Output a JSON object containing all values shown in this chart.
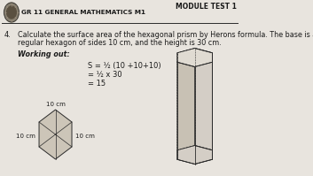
{
  "bg_color": "#e8e4de",
  "header_bg": "#e8e4de",
  "header_text": "GR 11 GENERAL MATHEMATICS M1",
  "module_text": "MODULE TEST 1",
  "question_num": "4.",
  "question_line1": "Calculate the surface area of the hexagonal prism by Herons formula. The base is a",
  "question_line2": "regular hexagon of sides 10 cm, and the height is 30 cm.",
  "working_label": "Working out:",
  "formula_lines": [
    "S = ½ (10 +10+10)",
    "= ½ x 30",
    "= 15"
  ],
  "line_color": "#2a2a2a",
  "text_color": "#1a1a1a",
  "logo_outer": "#888070",
  "logo_inner": "#5a5040",
  "hex_face_color": "#ccc5b8",
  "prism_face_light": "#e0dbd2",
  "prism_face_dark": "#c8c1b4",
  "prism_face_mid": "#d4cec6"
}
